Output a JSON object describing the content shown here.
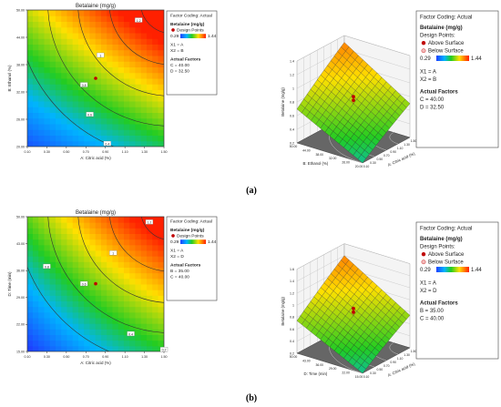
{
  "panel_labels": [
    "(a)",
    "(b)"
  ],
  "legend_colors": {
    "low": "#1e40ff",
    "mid": "#22cc22",
    "high": "#ff1a00",
    "point": "#c00000"
  },
  "chart_data": [
    {
      "type": "contour",
      "panel": "(a)",
      "title": "Betalaine (mg/g)",
      "xlabel": "A: Citric acid (%)",
      "ylabel": "B: Ethanol (%)",
      "xlim": [
        0.1,
        1.5
      ],
      "ylim": [
        20,
        50
      ],
      "x_ticks": [
        "0.10",
        "0.30",
        "0.50",
        "0.70",
        "0.90",
        "1.10",
        "1.30",
        "1.50"
      ],
      "y_ticks": [
        "20.00",
        "26.00",
        "32.00",
        "38.00",
        "44.00",
        "50.00"
      ],
      "contour_labels": [
        {
          "text": "0.4",
          "x": 0.92,
          "y": 20.6
        },
        {
          "text": "0.6",
          "x": 0.74,
          "y": 27.0
        },
        {
          "text": "0.8",
          "x": 0.68,
          "y": 33.5
        },
        {
          "text": "1",
          "x": 0.85,
          "y": 40.0
        },
        {
          "text": "1.2",
          "x": 1.24,
          "y": 47.7
        }
      ],
      "design_points": [
        {
          "x": 0.8,
          "y": 35.0
        }
      ],
      "legend": {
        "header": "Factor Coding: Actual",
        "response": "Betalaine (mg/g)",
        "points_label": "Design Points",
        "range": [
          "0.29",
          "1.44"
        ],
        "axes": [
          "X1 = A",
          "X2 = B"
        ],
        "actual_title": "Actual Factors",
        "actual": [
          "C = 40.00",
          "D = 32.50"
        ]
      }
    },
    {
      "type": "surface3d",
      "panel": "(a)",
      "zlabel": "Betalaine (mg/g)",
      "xlabel": "A: Citric acid (%)",
      "ylabel": "B: Ethanol (%)",
      "x_ticks": [
        "0.10",
        "0.30",
        "0.50",
        "0.70",
        "0.90",
        "1.10",
        "1.30",
        "1.50"
      ],
      "y_ticks": [
        "20.00",
        "26.00",
        "32.00",
        "38.00",
        "44.00",
        "50.00"
      ],
      "z_ticks": [
        "0.2",
        "0.4",
        "0.6",
        "0.8",
        "1",
        "1.2",
        "1.4"
      ],
      "zlim": [
        0.2,
        1.4
      ],
      "legend": {
        "header": "Factor Coding: Actual",
        "response": "Betalaine (mg/g)",
        "points_title": "Design Points:",
        "above": "Above Surface",
        "below": "Below Surface",
        "range": [
          "0.29",
          "1.44"
        ],
        "axes": [
          "X1 = A",
          "X2 = B"
        ],
        "actual_title": "Actual Factors",
        "actual": [
          "C = 40.00",
          "D = 32.50"
        ]
      }
    },
    {
      "type": "contour",
      "panel": "(b)",
      "title": "Betalaine (mg/g)",
      "xlabel": "A: Citric acid (%)",
      "ylabel": "D: Time (min)",
      "xlim": [
        0.1,
        1.5
      ],
      "ylim": [
        15,
        50
      ],
      "x_ticks": [
        "0.10",
        "0.30",
        "0.50",
        "0.70",
        "0.90",
        "1.10",
        "1.30",
        "1.50"
      ],
      "y_ticks": [
        "15.00",
        "22.00",
        "29.00",
        "36.00",
        "43.00",
        "50.00"
      ],
      "contour_labels": [
        {
          "text": "0.2",
          "x": 1.5,
          "y": 15.4
        },
        {
          "text": "0.4",
          "x": 1.16,
          "y": 19.5
        },
        {
          "text": "0.6",
          "x": 0.68,
          "y": 32.5
        },
        {
          "text": "0.8",
          "x": 0.3,
          "y": 37.0
        },
        {
          "text": "1",
          "x": 0.98,
          "y": 40.5
        },
        {
          "text": "1.2",
          "x": 1.35,
          "y": 48.5
        }
      ],
      "design_points": [
        {
          "x": 0.8,
          "y": 32.6
        }
      ],
      "legend": {
        "header": "Factor Coding: Actual",
        "response": "Betalaine (mg/g)",
        "points_label": "Design Points",
        "range": [
          "0.29",
          "1.44"
        ],
        "axes": [
          "X1 = A",
          "X2 = D"
        ],
        "actual_title": "Actual Factors",
        "actual": [
          "B = 35.00",
          "C = 40.00"
        ]
      }
    },
    {
      "type": "surface3d",
      "panel": "(b)",
      "zlabel": "Betalaine (mg/g)",
      "xlabel": "A: Citric acid (%)",
      "ylabel": "D: Time (min)",
      "x_ticks": [
        "0.10",
        "0.30",
        "0.50",
        "0.70",
        "0.90",
        "1.10",
        "1.30",
        "1.50"
      ],
      "y_ticks": [
        "15.00",
        "22.00",
        "29.00",
        "36.00",
        "43.00",
        "50.00"
      ],
      "z_ticks": [
        "0.2",
        "0.4",
        "0.6",
        "0.8",
        "1",
        "1.2",
        "1.4",
        "1.6"
      ],
      "zlim": [
        0.2,
        1.6
      ],
      "legend": {
        "header": "Factor Coding: Actual",
        "response": "Betalaine (mg/g)",
        "points_title": "Design Points:",
        "above": "Above Surface",
        "below": "Below Surface",
        "range": [
          "0.29",
          "1.44"
        ],
        "axes": [
          "X1 = A",
          "X2 = D"
        ],
        "actual_title": "Actual Factors",
        "actual": [
          "B = 35.00",
          "C = 40.00"
        ]
      }
    }
  ]
}
